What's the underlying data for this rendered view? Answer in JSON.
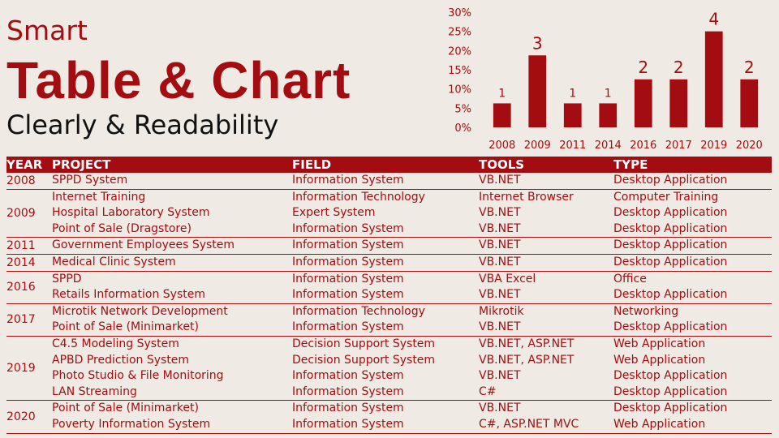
{
  "title": {
    "small": "Smart",
    "big": "Table & Chart",
    "sub": "Clearly & Readability"
  },
  "colors": {
    "accent": "#a30d12",
    "background": "#efebe4"
  },
  "chart_data": {
    "type": "bar",
    "categories": [
      "2008",
      "2009",
      "2011",
      "2014",
      "2016",
      "2017",
      "2019",
      "2020"
    ],
    "values": [
      6.25,
      18.75,
      6.25,
      6.25,
      12.5,
      12.5,
      25,
      12.5
    ],
    "data_labels": [
      "1",
      "3",
      "1",
      "1",
      "2",
      "2",
      "4",
      "2"
    ],
    "yticks": [
      "0%",
      "5%",
      "10%",
      "15%",
      "20%",
      "25%",
      "30%"
    ],
    "ylim": [
      0,
      30
    ],
    "grid": false,
    "legend": false,
    "bar_color": "#a30d12"
  },
  "table": {
    "headers": {
      "year": "YEAR",
      "project": "PROJECT",
      "field": "FIELD",
      "tools": "TOOLS",
      "type": "TYPE"
    },
    "groups": [
      {
        "year": "2008",
        "rows": [
          {
            "project": "SPPD System",
            "field": "Information System",
            "tools": "VB.NET",
            "type": "Desktop Application"
          }
        ]
      },
      {
        "year": "2009",
        "rows": [
          {
            "project": "Internet Training",
            "field": "Information Technology",
            "tools": "Internet Browser",
            "type": "Computer Training"
          },
          {
            "project": "Hospital Laboratory System",
            "field": "Expert System",
            "tools": "VB.NET",
            "type": "Desktop Application"
          },
          {
            "project": "Point of Sale (Dragstore)",
            "field": "Information System",
            "tools": "VB.NET",
            "type": "Desktop Application"
          }
        ]
      },
      {
        "year": "2011",
        "rows": [
          {
            "project": "Government Employees System",
            "field": "Information System",
            "tools": "VB.NET",
            "type": "Desktop Application"
          }
        ]
      },
      {
        "year": "2014",
        "rows": [
          {
            "project": "Medical Clinic System",
            "field": "Information System",
            "tools": "VB.NET",
            "type": "Desktop Application"
          }
        ]
      },
      {
        "year": "2016",
        "rows": [
          {
            "project": "SPPD",
            "field": "Information System",
            "tools": "VBA Excel",
            "type": "Office"
          },
          {
            "project": "Retails Information System",
            "field": "Information System",
            "tools": "VB.NET",
            "type": "Desktop Application"
          }
        ]
      },
      {
        "year": "2017",
        "rows": [
          {
            "project": "Microtik Network Development",
            "field": "Information Technology",
            "tools": "Mikrotik",
            "type": "Networking"
          },
          {
            "project": "Point of Sale (Minimarket)",
            "field": "Information System",
            "tools": "VB.NET",
            "type": "Desktop Application"
          }
        ]
      },
      {
        "year": "2019",
        "rows": [
          {
            "project": "C4.5 Modeling System",
            "field": "Decision Support System",
            "tools": "VB.NET, ASP.NET",
            "type": "Web Application"
          },
          {
            "project": "APBD Prediction System",
            "field": "Decision Support System",
            "tools": "VB.NET, ASP.NET",
            "type": "Web Application"
          },
          {
            "project": "Photo Studio & File Monitoring",
            "field": "Information System",
            "tools": "VB.NET",
            "type": "Desktop Application"
          },
          {
            "project": "LAN Streaming",
            "field": "Information System",
            "tools": "C#",
            "type": "Desktop Application"
          }
        ]
      },
      {
        "year": "2020",
        "rows": [
          {
            "project": "Point of Sale (Minimarket)",
            "field": "Information System",
            "tools": "VB.NET",
            "type": "Desktop Application"
          },
          {
            "project": "Poverty Information System",
            "field": "Information System",
            "tools": "C#, ASP.NET MVC",
            "type": "Web Application"
          }
        ]
      }
    ]
  }
}
